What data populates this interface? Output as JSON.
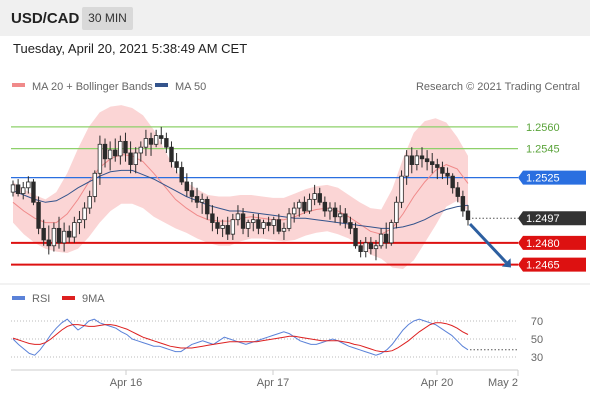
{
  "header": {
    "symbol": "USD/CAD",
    "timeframe": "30 MIN",
    "datetime": "Tuesday, April 20, 2021 5:38:49 AM CET"
  },
  "legend": {
    "ma20_label": "MA 20 + Bollinger Bands",
    "ma50_label": "MA 50",
    "copyright": "Research © 2021 Trading Central",
    "rsi_label": "RSI",
    "rsi_ma_label": "9MA"
  },
  "colors": {
    "candle": "#2a2a2a",
    "bollinger_fill": "#fbd5d5",
    "ma20": "#f08a8a",
    "ma50": "#34548c",
    "resistance": "#8ed06a",
    "pivot": "#2a6fe0",
    "support": "#dd1111",
    "current": "#333333",
    "arrow": "#2d5fa0",
    "rsi": "#5b82d8",
    "rsi_ma": "#dd2020"
  },
  "chart_data": {
    "type": "candlestick",
    "x_tick_labels": [
      "Apr 16",
      "Apr 17",
      "Apr 20",
      "May 2"
    ],
    "price_ylim": [
      1.2453,
      1.2582
    ],
    "rsi_ylim": [
      20,
      80
    ],
    "rsi_ticks": [
      "70",
      "50",
      "30"
    ],
    "levels": [
      {
        "value": 1.256,
        "label": "1.2560",
        "kind": "resistance"
      },
      {
        "value": 1.2545,
        "label": "1.2545",
        "kind": "resistance"
      },
      {
        "value": 1.2525,
        "label": "1.2525",
        "kind": "pivot"
      },
      {
        "value": 1.2497,
        "label": "1.2497",
        "kind": "current"
      },
      {
        "value": 1.248,
        "label": "1.2480",
        "kind": "support"
      },
      {
        "value": 1.2465,
        "label": "1.2465",
        "kind": "support"
      }
    ],
    "forecast_arrow": {
      "from": 1.2493,
      "to": 1.2463
    },
    "candles": [
      [
        1.2515,
        1.2523,
        1.2512,
        1.252
      ],
      [
        1.252,
        1.2524,
        1.2512,
        1.2514
      ],
      [
        1.2514,
        1.2522,
        1.251,
        1.2518
      ],
      [
        1.2518,
        1.2526,
        1.2514,
        1.2522
      ],
      [
        1.2522,
        1.2524,
        1.2506,
        1.2508
      ],
      [
        1.2508,
        1.2512,
        1.2486,
        1.249
      ],
      [
        1.249,
        1.2496,
        1.2478,
        1.2482
      ],
      [
        1.2482,
        1.2492,
        1.2472,
        1.2478
      ],
      [
        1.2478,
        1.2494,
        1.2474,
        1.249
      ],
      [
        1.249,
        1.2498,
        1.2476,
        1.248
      ],
      [
        1.248,
        1.2494,
        1.2474,
        1.2488
      ],
      [
        1.2488,
        1.2492,
        1.248,
        1.2484
      ],
      [
        1.2484,
        1.2498,
        1.248,
        1.2494
      ],
      [
        1.2494,
        1.2502,
        1.2486,
        1.2496
      ],
      [
        1.2496,
        1.2508,
        1.249,
        1.2504
      ],
      [
        1.2504,
        1.2516,
        1.25,
        1.2512
      ],
      [
        1.2512,
        1.253,
        1.2508,
        1.2528
      ],
      [
        1.2528,
        1.2554,
        1.252,
        1.2548
      ],
      [
        1.2548,
        1.2552,
        1.2532,
        1.2538
      ],
      [
        1.2538,
        1.255,
        1.253,
        1.2544
      ],
      [
        1.2544,
        1.2552,
        1.2536,
        1.254
      ],
      [
        1.254,
        1.2554,
        1.2534,
        1.255
      ],
      [
        1.255,
        1.2556,
        1.2536,
        1.2542
      ],
      [
        1.2542,
        1.255,
        1.2528,
        1.2534
      ],
      [
        1.2534,
        1.2546,
        1.2528,
        1.2542
      ],
      [
        1.2542,
        1.255,
        1.2536,
        1.2546
      ],
      [
        1.2546,
        1.2558,
        1.254,
        1.2552
      ],
      [
        1.2552,
        1.2556,
        1.254,
        1.2548
      ],
      [
        1.2548,
        1.2558,
        1.2546,
        1.2554
      ],
      [
        1.2554,
        1.256,
        1.2548,
        1.2552
      ],
      [
        1.2552,
        1.2556,
        1.2542,
        1.2546
      ],
      [
        1.2546,
        1.255,
        1.2532,
        1.2536
      ],
      [
        1.2536,
        1.2542,
        1.2528,
        1.2532
      ],
      [
        1.2532,
        1.2536,
        1.252,
        1.2522
      ],
      [
        1.2522,
        1.2528,
        1.2512,
        1.2516
      ],
      [
        1.2516,
        1.2522,
        1.2508,
        1.2512
      ],
      [
        1.2512,
        1.2518,
        1.2504,
        1.2508
      ],
      [
        1.2508,
        1.2514,
        1.25,
        1.251
      ],
      [
        1.251,
        1.2512,
        1.2496,
        1.25
      ],
      [
        1.25,
        1.2506,
        1.2488,
        1.2494
      ],
      [
        1.2494,
        1.2498,
        1.2486,
        1.249
      ],
      [
        1.249,
        1.2496,
        1.2484,
        1.2492
      ],
      [
        1.2492,
        1.2498,
        1.2482,
        1.2486
      ],
      [
        1.2486,
        1.25,
        1.2482,
        1.2496
      ],
      [
        1.2496,
        1.2506,
        1.2492,
        1.25
      ],
      [
        1.25,
        1.2504,
        1.2486,
        1.249
      ],
      [
        1.249,
        1.2496,
        1.2484,
        1.2494
      ],
      [
        1.2494,
        1.25,
        1.2488,
        1.2496
      ],
      [
        1.2496,
        1.25,
        1.2486,
        1.249
      ],
      [
        1.249,
        1.2496,
        1.2486,
        1.2494
      ],
      [
        1.2494,
        1.2498,
        1.2488,
        1.2492
      ],
      [
        1.2492,
        1.2498,
        1.2486,
        1.2496
      ],
      [
        1.2496,
        1.25,
        1.2486,
        1.2488
      ],
      [
        1.2488,
        1.2494,
        1.2482,
        1.249
      ],
      [
        1.249,
        1.2504,
        1.2488,
        1.25
      ],
      [
        1.25,
        1.2508,
        1.2494,
        1.2504
      ],
      [
        1.2504,
        1.251,
        1.2498,
        1.2508
      ],
      [
        1.2508,
        1.2512,
        1.25,
        1.2502
      ],
      [
        1.2502,
        1.2514,
        1.25,
        1.251
      ],
      [
        1.251,
        1.252,
        1.2506,
        1.2514
      ],
      [
        1.2514,
        1.2518,
        1.2506,
        1.2508
      ],
      [
        1.2508,
        1.2512,
        1.2498,
        1.2502
      ],
      [
        1.2502,
        1.2508,
        1.2496,
        1.2504
      ],
      [
        1.2504,
        1.2508,
        1.2494,
        1.2498
      ],
      [
        1.2498,
        1.2506,
        1.2492,
        1.25
      ],
      [
        1.25,
        1.2504,
        1.249,
        1.2494
      ],
      [
        1.2494,
        1.2498,
        1.2486,
        1.249
      ],
      [
        1.249,
        1.2494,
        1.2476,
        1.2478
      ],
      [
        1.2478,
        1.2482,
        1.247,
        1.2474
      ],
      [
        1.2474,
        1.2484,
        1.247,
        1.248
      ],
      [
        1.248,
        1.2484,
        1.2472,
        1.2476
      ],
      [
        1.2476,
        1.2482,
        1.2468,
        1.2478
      ],
      [
        1.2478,
        1.249,
        1.2476,
        1.2486
      ],
      [
        1.2486,
        1.2494,
        1.2476,
        1.248
      ],
      [
        1.248,
        1.2496,
        1.2478,
        1.2494
      ],
      [
        1.2494,
        1.2512,
        1.249,
        1.2508
      ],
      [
        1.2508,
        1.253,
        1.2504,
        1.2526
      ],
      [
        1.2526,
        1.2544,
        1.252,
        1.254
      ],
      [
        1.254,
        1.2546,
        1.2528,
        1.2534
      ],
      [
        1.2534,
        1.2544,
        1.253,
        1.254
      ],
      [
        1.254,
        1.2546,
        1.2532,
        1.2538
      ],
      [
        1.2538,
        1.2544,
        1.253,
        1.2536
      ],
      [
        1.2536,
        1.2542,
        1.2528,
        1.2534
      ],
      [
        1.2534,
        1.2538,
        1.2524,
        1.2532
      ],
      [
        1.2532,
        1.2536,
        1.2524,
        1.2528
      ],
      [
        1.2528,
        1.2532,
        1.252,
        1.2526
      ],
      [
        1.2526,
        1.2528,
        1.2514,
        1.2518
      ],
      [
        1.2518,
        1.2522,
        1.2508,
        1.2512
      ],
      [
        1.2512,
        1.2516,
        1.2498,
        1.2502
      ],
      [
        1.2502,
        1.2506,
        1.2492,
        1.2496
      ]
    ],
    "ma20": [
      1.2508,
      1.2502,
      1.2497,
      1.2494,
      1.2494,
      1.25,
      1.251,
      1.2522,
      1.2532,
      1.2538,
      1.2541,
      1.254,
      1.2536,
      1.2528,
      1.2519,
      1.251,
      1.2504,
      1.2499,
      1.2496,
      1.2495,
      1.2495,
      1.2497,
      1.2498,
      1.2497,
      1.2496,
      1.2496,
      1.2498,
      1.2501,
      1.2503,
      1.2504,
      1.2502,
      1.2498,
      1.2493,
      1.2488,
      1.2486,
      1.249,
      1.25,
      1.2512,
      1.2522,
      1.253,
      1.2534,
      1.2531,
      1.2521
    ],
    "ma50": [
      1.2516,
      1.2513,
      1.251,
      1.2508,
      1.2509,
      1.2513,
      1.2518,
      1.2522,
      1.2526,
      1.2529,
      1.253,
      1.253,
      1.2527,
      1.2524,
      1.252,
      1.2516,
      1.2512,
      1.2509,
      1.2506,
      1.2504,
      1.2502,
      1.2502,
      1.2501,
      1.25,
      1.2499,
      1.2498,
      1.2497,
      1.2497,
      1.2496,
      1.2495,
      1.2494,
      1.2493,
      1.2492,
      1.2491,
      1.249,
      1.249,
      1.2491,
      1.2493,
      1.2496,
      1.25,
      1.2503,
      1.2505,
      1.2506
    ],
    "bb_upper": [
      1.2522,
      1.2517,
      1.2513,
      1.251,
      1.2515,
      1.2528,
      1.2545,
      1.256,
      1.257,
      1.2574,
      1.2575,
      1.2573,
      1.2568,
      1.2558,
      1.2544,
      1.253,
      1.2522,
      1.2517,
      1.2513,
      1.2512,
      1.2512,
      1.2513,
      1.2513,
      1.2512,
      1.2511,
      1.2511,
      1.2514,
      1.2517,
      1.2519,
      1.252,
      1.2518,
      1.2513,
      1.2508,
      1.2504,
      1.2503,
      1.2517,
      1.2538,
      1.2556,
      1.2564,
      1.2566,
      1.2563,
      1.2553,
      1.254
    ],
    "bb_lower": [
      1.2494,
      1.2486,
      1.248,
      1.2476,
      1.2474,
      1.2473,
      1.2476,
      1.2484,
      1.2494,
      1.2502,
      1.2507,
      1.2507,
      1.2504,
      1.2498,
      1.2494,
      1.249,
      1.2487,
      1.2483,
      1.248,
      1.2478,
      1.2478,
      1.2481,
      1.2483,
      1.2483,
      1.2482,
      1.2481,
      1.2482,
      1.2485,
      1.2487,
      1.2488,
      1.2486,
      1.2483,
      1.2478,
      1.2472,
      1.2469,
      1.2463,
      1.2462,
      1.2468,
      1.248,
      1.2492,
      1.2505,
      1.2509,
      1.2502
    ],
    "rsi": [
      50,
      44,
      39,
      34,
      32,
      38,
      46,
      55,
      62,
      68,
      72,
      66,
      60,
      64,
      70,
      72,
      68,
      66,
      64,
      62,
      58,
      55,
      50,
      48,
      46,
      44,
      42,
      42,
      40,
      38,
      36,
      36,
      40,
      44,
      46,
      48,
      46,
      44,
      48,
      52,
      50,
      48,
      46,
      44,
      46,
      48,
      50,
      52,
      54,
      56,
      58,
      56,
      52,
      48,
      46,
      44,
      44,
      46,
      48,
      50,
      48,
      45,
      42,
      40,
      38,
      36,
      34,
      32,
      34,
      38,
      44,
      52,
      60,
      66,
      70,
      72,
      70,
      68,
      66,
      62,
      58,
      54,
      48,
      42,
      38
    ],
    "rsi_ma": [
      51,
      49,
      47,
      45,
      44,
      44,
      46,
      50,
      55,
      60,
      64,
      66,
      66,
      65,
      64,
      64,
      65,
      66,
      66,
      65,
      63,
      61,
      58,
      55,
      52,
      50,
      48,
      46,
      44,
      42,
      41,
      40,
      40,
      40,
      41,
      42,
      43,
      44,
      45,
      46,
      47,
      47,
      47,
      47,
      47,
      47,
      48,
      49,
      50,
      51,
      52,
      53,
      53,
      52,
      51,
      50,
      49,
      48,
      48,
      48,
      48,
      47,
      46,
      44,
      43,
      41,
      39,
      37,
      36,
      36,
      37,
      40,
      44,
      48,
      53,
      58,
      62,
      66,
      68,
      68,
      67,
      65,
      62,
      58,
      55
    ]
  }
}
